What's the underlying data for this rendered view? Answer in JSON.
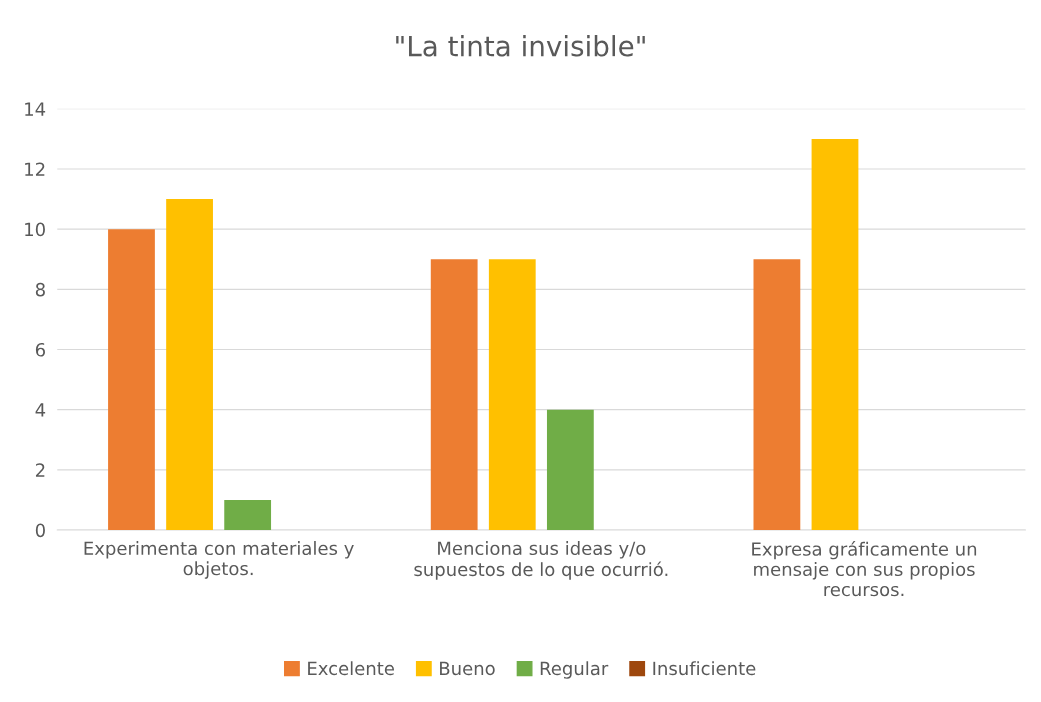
{
  "chart_data": {
    "type": "bar",
    "title": "\"La tinta invisible\"",
    "categories": [
      "Experimenta con materiales y objetos.",
      "Menciona sus ideas y/o supuestos de lo que ocurrió.",
      "Expresa gráficamente un mensaje con sus propios recursos."
    ],
    "series": [
      {
        "name": "Excelente",
        "color": "#ed7d31",
        "values": [
          10,
          9,
          9
        ]
      },
      {
        "name": "Bueno",
        "color": "#ffc000",
        "values": [
          11,
          9,
          13
        ]
      },
      {
        "name": "Regular",
        "color": "#70ad47",
        "values": [
          1,
          4,
          0
        ]
      },
      {
        "name": "Insuficiente",
        "color": "#9e480e",
        "values": [
          0,
          0,
          0
        ]
      }
    ],
    "ylim": [
      0,
      14
    ],
    "yticks": [
      0,
      2,
      4,
      6,
      8,
      10,
      12,
      14
    ],
    "grid": "y",
    "legend": "bottom"
  }
}
